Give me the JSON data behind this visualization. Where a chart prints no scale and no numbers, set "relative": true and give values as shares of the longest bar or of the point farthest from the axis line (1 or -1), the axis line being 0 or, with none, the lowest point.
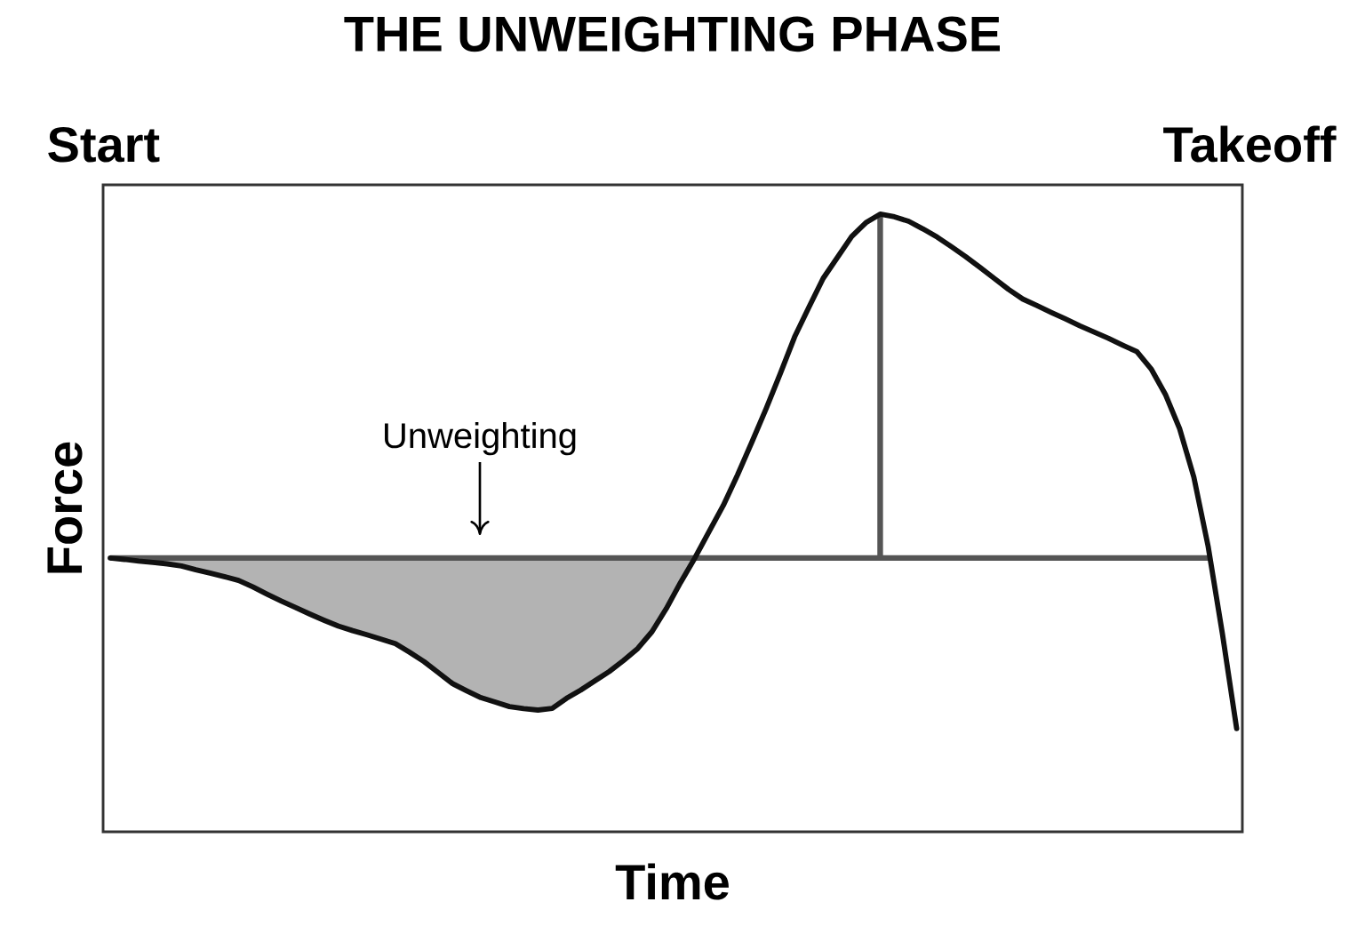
{
  "chart_data": {
    "type": "line",
    "title": "THE UNWEIGHTING PHASE",
    "xlabel": "Time",
    "ylabel": "Force",
    "relative": true,
    "categories": [
      null,
      null,
      null,
      null,
      null,
      null,
      null,
      null,
      null,
      null,
      null,
      null,
      null,
      null,
      null,
      null,
      null,
      null,
      null,
      null,
      null,
      null,
      null,
      null,
      null,
      null,
      null,
      null,
      null,
      null,
      null,
      null,
      null,
      null,
      null,
      null,
      null,
      null,
      null,
      null,
      null,
      null,
      null,
      null,
      null,
      null,
      null,
      null,
      null,
      null,
      null,
      null,
      null,
      null,
      null,
      null,
      null,
      null,
      null,
      null,
      null,
      null,
      null,
      null,
      null,
      null,
      null,
      null,
      null,
      null,
      null,
      null,
      null,
      null,
      null,
      null,
      null,
      null,
      null,
      null
    ],
    "series": [
      {
        "type": "area",
        "color": "#b3b3b3",
        "values": [
          0,
          -0.004,
          -0.009,
          -0.013,
          -0.017,
          -0.023,
          -0.034,
          -0.044,
          -0.054,
          -0.065,
          -0.084,
          -0.105,
          -0.125,
          -0.144,
          -0.163,
          -0.181,
          -0.198,
          -0.211,
          -0.223,
          -0.236,
          -0.249,
          -0.274,
          -0.301,
          -0.333,
          -0.365,
          -0.386,
          -0.406,
          -0.419,
          -0.432,
          -0.438,
          -0.442,
          -0.437,
          -0.408,
          -0.384,
          -0.357,
          -0.33,
          -0.298,
          -0.263,
          -0.214,
          -0.147,
          -0.071,
          0,
          null,
          null,
          null,
          null,
          null,
          null,
          null,
          null,
          null,
          null,
          null,
          null,
          null,
          null,
          null,
          null,
          null,
          null,
          null,
          null,
          null,
          null,
          null,
          null,
          null,
          null,
          null,
          null,
          null,
          null,
          null,
          null,
          null,
          null,
          null,
          null,
          null,
          null
        ]
      },
      {
        "color": "#111111",
        "values": [
          0,
          -0.004,
          -0.009,
          -0.013,
          -0.017,
          -0.023,
          -0.034,
          -0.044,
          -0.054,
          -0.065,
          -0.084,
          -0.105,
          -0.125,
          -0.144,
          -0.163,
          -0.181,
          -0.198,
          -0.211,
          -0.223,
          -0.236,
          -0.249,
          -0.274,
          -0.301,
          -0.333,
          -0.365,
          -0.386,
          -0.406,
          -0.419,
          -0.432,
          -0.438,
          -0.442,
          -0.437,
          -0.408,
          -0.384,
          -0.357,
          -0.33,
          -0.298,
          -0.263,
          -0.214,
          -0.147,
          -0.071,
          0,
          0.077,
          0.153,
          0.242,
          0.337,
          0.434,
          0.537,
          0.643,
          0.729,
          0.813,
          0.874,
          0.935,
          0.975,
          1,
          0.992,
          0.979,
          0.957,
          0.933,
          0.905,
          0.876,
          0.845,
          0.813,
          0.781,
          0.753,
          0.734,
          0.714,
          0.695,
          0.675,
          0.657,
          0.639,
          0.619,
          0.6,
          0.55,
          0.476,
          0.376,
          0.235,
          0.034,
          -0.22,
          -0.496
        ]
      }
    ],
    "ref_lines": [
      {
        "axis": "y",
        "value": 0,
        "color": "#555555"
      }
    ],
    "annotations": [
      "Start",
      "Takeoff",
      "Unweighting"
    ]
  }
}
